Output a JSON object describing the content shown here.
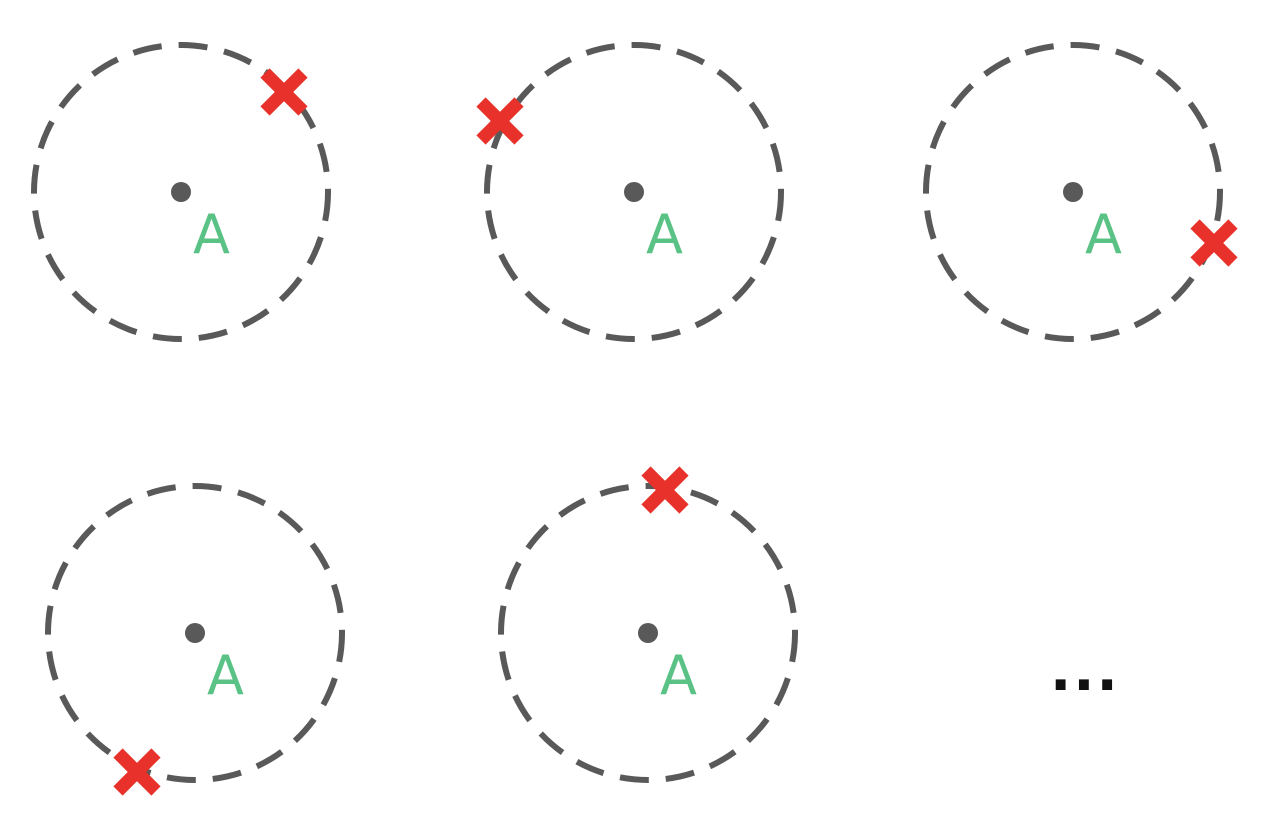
{
  "colors": {
    "ring": "#595959",
    "center_dot": "#595959",
    "label": "#5bc286",
    "cross": "#e8312a",
    "ellipsis": "#111111",
    "background": "#ffffff"
  },
  "icons": {
    "cross": "cross-icon",
    "ellipsis": "ellipsis"
  },
  "panels": [
    {
      "label": "A"
    },
    {
      "label": "A"
    },
    {
      "label": "A"
    },
    {
      "label": "A"
    },
    {
      "label": "A"
    }
  ],
  "continuation": "..."
}
